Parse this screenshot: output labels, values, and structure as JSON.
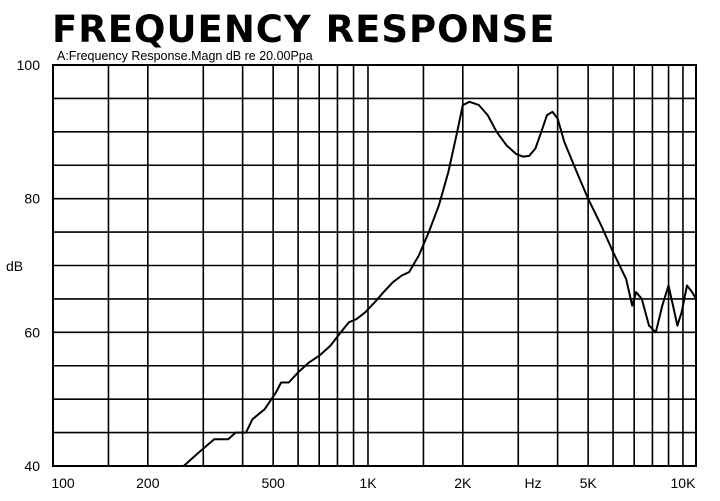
{
  "chart_data": {
    "type": "line",
    "title": "FREQUENCY RESPONSE",
    "subtitle": "A:Frequency Response.Magn dB re 20.00Ppa",
    "xlabel": "Hz",
    "ylabel": "dB",
    "x_scale": "log",
    "xlim": [
      100,
      11000
    ],
    "ylim": [
      40,
      100
    ],
    "grid": true,
    "legend": "none",
    "x_grid_lines": [
      100,
      150,
      200,
      300,
      400,
      500,
      600,
      700,
      800,
      900,
      1000,
      1500,
      2000,
      3000,
      4000,
      5000,
      6000,
      7000,
      8000,
      9000,
      10000,
      11000
    ],
    "y_grid_lines": [
      40,
      45,
      50,
      55,
      60,
      65,
      70,
      75,
      80,
      85,
      90,
      95,
      100
    ],
    "x_ticks": [
      {
        "value": 100,
        "label": "100"
      },
      {
        "value": 200,
        "label": "200"
      },
      {
        "value": 500,
        "label": "500"
      },
      {
        "value": 1000,
        "label": "1K"
      },
      {
        "value": 2000,
        "label": "2K"
      },
      {
        "value": 5000,
        "label": "5K"
      },
      {
        "value": 10000,
        "label": "10K"
      }
    ],
    "y_ticks": [
      {
        "value": 100,
        "label": "100"
      },
      {
        "value": 80,
        "label": "80"
      },
      {
        "value": 60,
        "label": "60"
      },
      {
        "value": 40,
        "label": "40"
      }
    ],
    "series": [
      {
        "color": "#000000",
        "points": [
          [
            260,
            40
          ],
          [
            290,
            42
          ],
          [
            325,
            44
          ],
          [
            360,
            44
          ],
          [
            380,
            45
          ],
          [
            395,
            45
          ],
          [
            410,
            45
          ],
          [
            430,
            47
          ],
          [
            470,
            48.5
          ],
          [
            510,
            51
          ],
          [
            530,
            52.5
          ],
          [
            560,
            52.5
          ],
          [
            600,
            54
          ],
          [
            650,
            55.5
          ],
          [
            700,
            56.5
          ],
          [
            760,
            58
          ],
          [
            820,
            60
          ],
          [
            870,
            61.5
          ],
          [
            920,
            62
          ],
          [
            980,
            63
          ],
          [
            1050,
            64.5
          ],
          [
            1120,
            66
          ],
          [
            1200,
            67.5
          ],
          [
            1280,
            68.5
          ],
          [
            1350,
            69
          ],
          [
            1450,
            71.5
          ],
          [
            1560,
            75
          ],
          [
            1680,
            79
          ],
          [
            1800,
            84
          ],
          [
            1920,
            90
          ],
          [
            2000,
            94
          ],
          [
            2100,
            94.5
          ],
          [
            2250,
            94
          ],
          [
            2400,
            92.5
          ],
          [
            2560,
            90
          ],
          [
            2750,
            88
          ],
          [
            2950,
            86.7
          ],
          [
            3100,
            86.3
          ],
          [
            3250,
            86.4
          ],
          [
            3400,
            87.5
          ],
          [
            3550,
            90
          ],
          [
            3700,
            92.5
          ],
          [
            3850,
            93
          ],
          [
            4000,
            92
          ],
          [
            4200,
            88.5
          ],
          [
            4600,
            84
          ],
          [
            5000,
            80
          ],
          [
            5500,
            76
          ],
          [
            6000,
            72
          ],
          [
            6600,
            68
          ],
          [
            6900,
            64
          ],
          [
            7100,
            66
          ],
          [
            7400,
            65
          ],
          [
            7800,
            61
          ],
          [
            8200,
            60
          ],
          [
            8600,
            64
          ],
          [
            9000,
            67
          ],
          [
            9300,
            64
          ],
          [
            9600,
            61
          ],
          [
            9900,
            63
          ],
          [
            10300,
            67
          ],
          [
            10700,
            66
          ],
          [
            11000,
            65
          ]
        ]
      }
    ]
  }
}
